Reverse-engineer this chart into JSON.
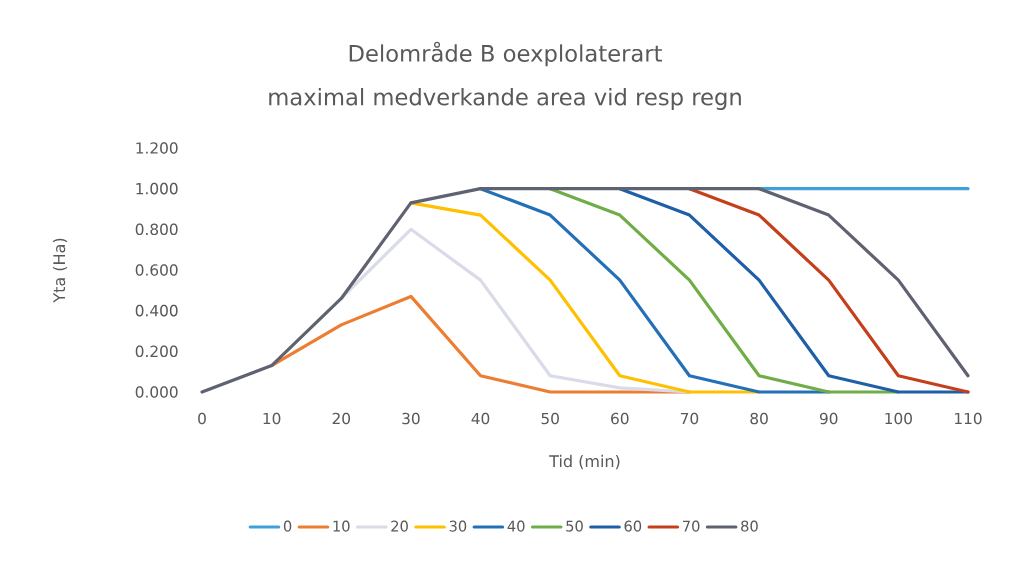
{
  "chart_data": {
    "type": "line",
    "title": "Delområde B oexplolaterart",
    "subtitle": "maximal medverkande area vid resp regn",
    "xlabel": "Tid (min)",
    "ylabel": "Yta (Ha)",
    "categories": [
      "0",
      "10",
      "20",
      "30",
      "40",
      "50",
      "60",
      "70",
      "80",
      "90",
      "100",
      "110"
    ],
    "ylim": [
      0,
      1.2
    ],
    "yticks": [
      {
        "value": 0,
        "label": "0.000"
      },
      {
        "value": 0.2,
        "label": "0.200"
      },
      {
        "value": 0.4,
        "label": "0.400"
      },
      {
        "value": 0.6,
        "label": "0.600"
      },
      {
        "value": 0.8,
        "label": "0.800"
      },
      {
        "value": 1.0,
        "label": "1.000"
      },
      {
        "value": 1.2,
        "label": "1.200"
      }
    ],
    "legend": "bottom",
    "series": [
      {
        "name": "0",
        "color": "#41a0dc",
        "values": [
          null,
          null,
          null,
          null,
          null,
          null,
          null,
          null,
          1,
          1,
          1,
          1
        ]
      },
      {
        "name": "10",
        "color": "#ed7d31",
        "values": [
          null,
          0.13,
          0.33,
          0.47,
          0.08,
          0,
          0,
          0,
          null,
          null,
          null,
          null
        ]
      },
      {
        "name": "20",
        "color": "#d9dbe8",
        "values": [
          null,
          null,
          0.46,
          0.8,
          0.55,
          0.08,
          0.02,
          0,
          null,
          null,
          null,
          null
        ]
      },
      {
        "name": "30",
        "color": "#ffc000",
        "values": [
          null,
          null,
          null,
          0.93,
          0.87,
          0.55,
          0.08,
          0,
          0,
          null,
          null,
          null
        ]
      },
      {
        "name": "40",
        "color": "#2470b8",
        "values": [
          null,
          null,
          null,
          null,
          1,
          0.87,
          0.55,
          0.08,
          0,
          0,
          null,
          null
        ]
      },
      {
        "name": "50",
        "color": "#70ad47",
        "values": [
          null,
          null,
          null,
          null,
          null,
          1,
          0.87,
          0.55,
          0.08,
          0,
          0,
          null
        ]
      },
      {
        "name": "60",
        "color": "#1f5fa8",
        "values": [
          null,
          null,
          null,
          null,
          null,
          null,
          1,
          0.87,
          0.55,
          0.08,
          0,
          0
        ]
      },
      {
        "name": "70",
        "color": "#c4401c",
        "values": [
          null,
          null,
          null,
          null,
          null,
          null,
          null,
          1,
          0.87,
          0.55,
          0.08,
          0
        ]
      },
      {
        "name": "80",
        "color": "#5f6270",
        "values": [
          0,
          0.13,
          0.46,
          0.93,
          1,
          1,
          1,
          1,
          1,
          0.87,
          0.55,
          0.08
        ]
      }
    ]
  }
}
